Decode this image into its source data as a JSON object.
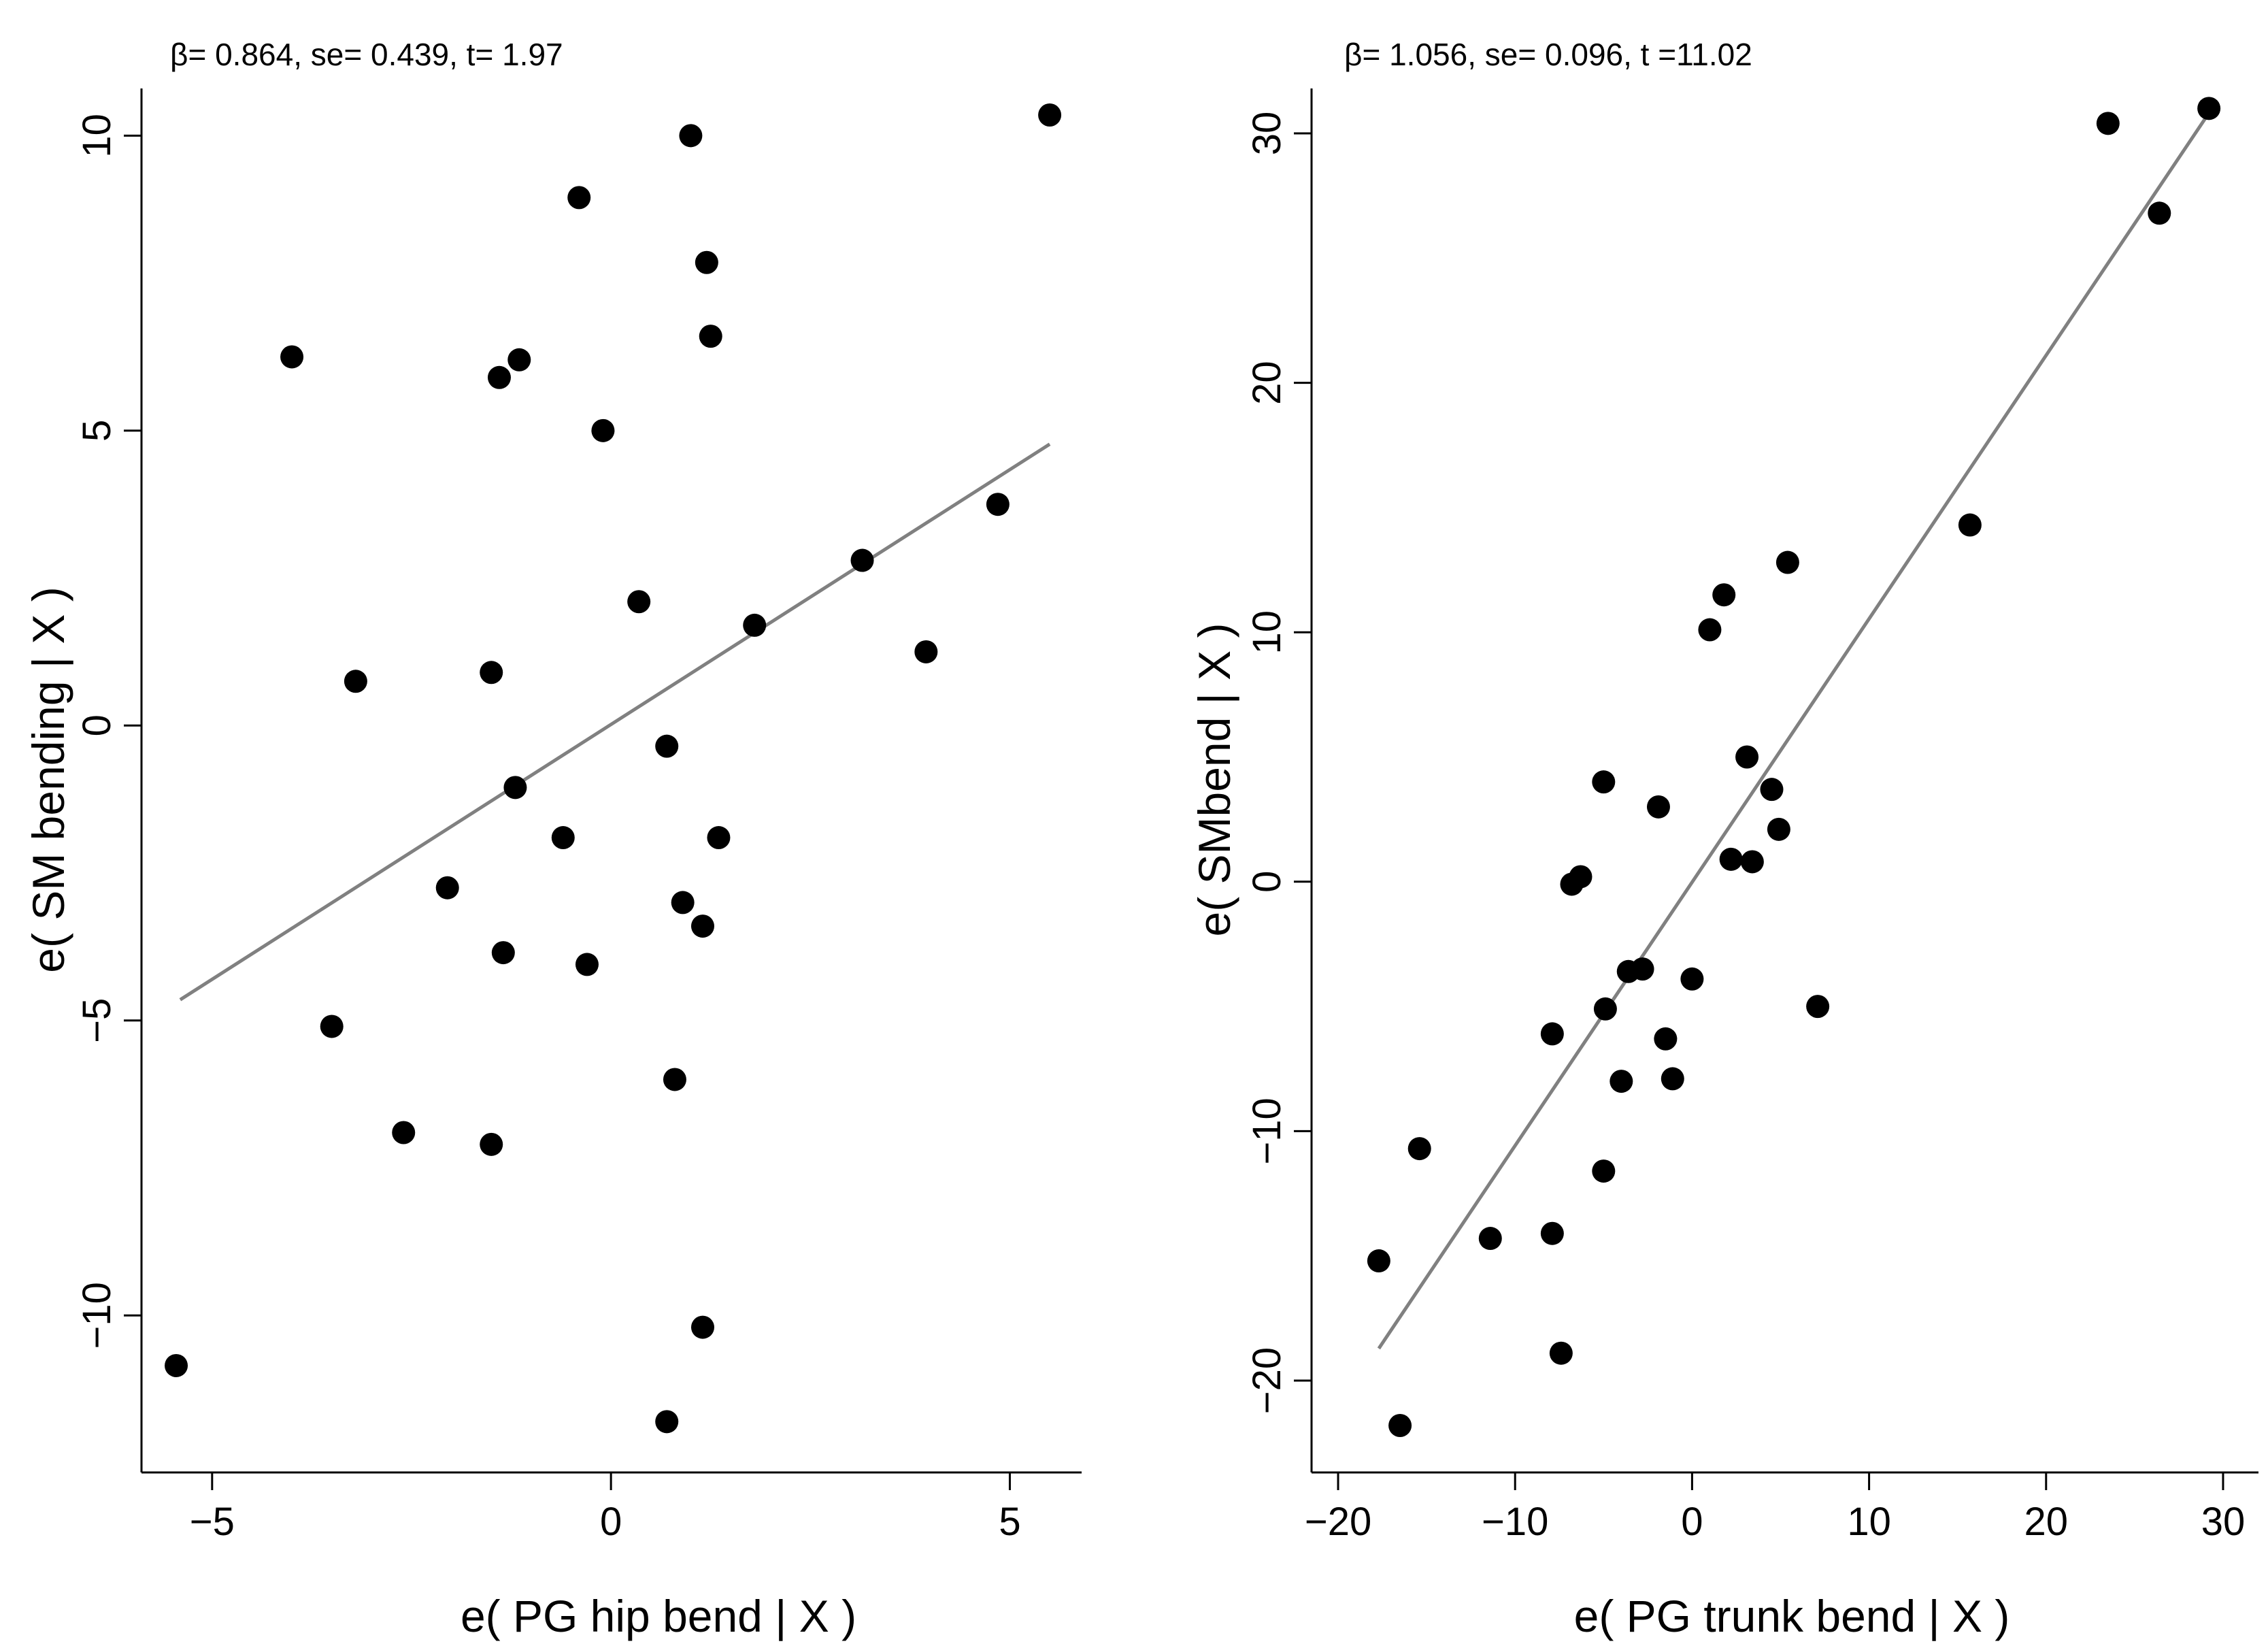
{
  "chart_data": [
    {
      "type": "scatter",
      "annotation": "β= 0.864, se= 0.439, t= 1.97",
      "xlabel": "e( PG hip bend | X )",
      "ylabel": "e( SM bending | X )",
      "xlim": [
        -5.8,
        5.9
      ],
      "ylim": [
        -12.5,
        10.8
      ],
      "xticks": [
        -5,
        0,
        5
      ],
      "xtick_labels": [
        "−5",
        "0",
        "5"
      ],
      "yticks": [
        -10,
        -5,
        0,
        5,
        10
      ],
      "ytick_labels": [
        "−10",
        "−5",
        "0",
        "5",
        "10"
      ],
      "fit_line": {
        "slope": 0.864,
        "x": [
          -5.4,
          5.5
        ]
      },
      "points": [
        {
          "x": -5.45,
          "y": -10.85
        },
        {
          "x": -4.0,
          "y": 6.25
        },
        {
          "x": -3.2,
          "y": 0.75
        },
        {
          "x": -3.5,
          "y": -5.1
        },
        {
          "x": -2.6,
          "y": -6.9
        },
        {
          "x": -2.05,
          "y": -2.75
        },
        {
          "x": -1.5,
          "y": 0.9
        },
        {
          "x": -1.4,
          "y": 5.9
        },
        {
          "x": -1.35,
          "y": -3.85
        },
        {
          "x": -1.5,
          "y": -7.1
        },
        {
          "x": -1.2,
          "y": -1.05
        },
        {
          "x": -1.15,
          "y": 6.2
        },
        {
          "x": -0.6,
          "y": -1.9
        },
        {
          "x": -0.4,
          "y": 8.95
        },
        {
          "x": -0.3,
          "y": -4.05
        },
        {
          "x": -0.1,
          "y": 5.0
        },
        {
          "x": 0.35,
          "y": 2.1
        },
        {
          "x": 0.7,
          "y": -0.35
        },
        {
          "x": 0.8,
          "y": -6.0
        },
        {
          "x": 0.9,
          "y": -3.0
        },
        {
          "x": 1.0,
          "y": 10.0
        },
        {
          "x": 1.15,
          "y": -3.4
        },
        {
          "x": 1.15,
          "y": -10.2
        },
        {
          "x": 1.2,
          "y": 7.85
        },
        {
          "x": 1.25,
          "y": 6.6
        },
        {
          "x": 1.35,
          "y": -1.9
        },
        {
          "x": 1.8,
          "y": 1.7
        },
        {
          "x": 0.7,
          "y": -11.8
        },
        {
          "x": 3.15,
          "y": 2.8
        },
        {
          "x": 3.95,
          "y": 1.25
        },
        {
          "x": 4.85,
          "y": 3.75
        },
        {
          "x": 5.5,
          "y": 10.35
        }
      ]
    },
    {
      "type": "scatter",
      "annotation": "β= 1.056, se= 0.096, t =11.02",
      "xlabel": "e( PG trunk bend | X )",
      "ylabel": "e( SMbend | X )",
      "xlim": [
        -21.5,
        32
      ],
      "ylim": [
        -23.3,
        31.8
      ],
      "xticks": [
        -20,
        -10,
        0,
        10,
        20,
        30
      ],
      "xtick_labels": [
        "−20",
        "−10",
        "0",
        "10",
        "20",
        "30"
      ],
      "yticks": [
        -20,
        -10,
        0,
        10,
        20,
        30
      ],
      "ytick_labels": [
        "−20",
        "−10",
        "0",
        "10",
        "20",
        "30"
      ],
      "fit_line": {
        "slope": 1.056,
        "x": [
          -17.7,
          29.2
        ]
      },
      "points": [
        {
          "x": -17.7,
          "y": -15.2
        },
        {
          "x": -16.5,
          "y": -21.8
        },
        {
          "x": -15.4,
          "y": -10.7
        },
        {
          "x": -11.4,
          "y": -14.3
        },
        {
          "x": -7.9,
          "y": -14.1
        },
        {
          "x": -7.9,
          "y": -6.1
        },
        {
          "x": -7.4,
          "y": -18.9
        },
        {
          "x": -6.8,
          "y": -0.1
        },
        {
          "x": -6.3,
          "y": 0.2
        },
        {
          "x": -5.0,
          "y": 4.0
        },
        {
          "x": -5.0,
          "y": -11.6
        },
        {
          "x": -4.9,
          "y": -5.1
        },
        {
          "x": -4.0,
          "y": -8.0
        },
        {
          "x": -3.6,
          "y": -3.6
        },
        {
          "x": -2.8,
          "y": -3.5
        },
        {
          "x": -1.9,
          "y": 3.0
        },
        {
          "x": -1.5,
          "y": -6.3
        },
        {
          "x": -1.1,
          "y": -7.9
        },
        {
          "x": 0.0,
          "y": -3.9
        },
        {
          "x": 1.0,
          "y": 10.1
        },
        {
          "x": 1.8,
          "y": 11.5
        },
        {
          "x": 2.2,
          "y": 0.9
        },
        {
          "x": 3.1,
          "y": 5.0
        },
        {
          "x": 3.4,
          "y": 0.8
        },
        {
          "x": 4.5,
          "y": 3.7
        },
        {
          "x": 4.9,
          "y": 2.1
        },
        {
          "x": 5.4,
          "y": 12.8
        },
        {
          "x": 7.1,
          "y": -5.0
        },
        {
          "x": 15.7,
          "y": 14.3
        },
        {
          "x": 23.5,
          "y": 30.4
        },
        {
          "x": 26.4,
          "y": 26.8
        },
        {
          "x": 29.2,
          "y": 31.0
        }
      ]
    }
  ]
}
